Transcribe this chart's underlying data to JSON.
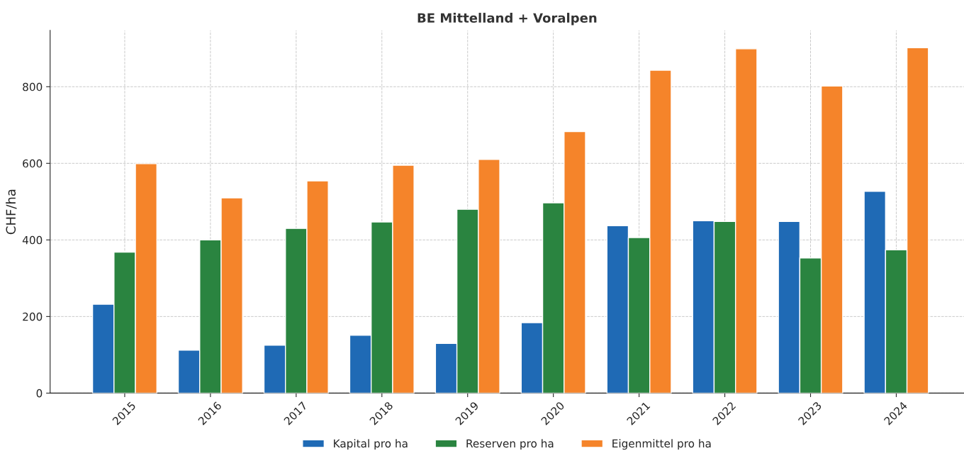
{
  "chart_data": {
    "type": "bar",
    "title": "BE Mittelland + Voralpen",
    "ylabel": "CHF/ha",
    "categories": [
      "2015",
      "2016",
      "2017",
      "2018",
      "2019",
      "2020",
      "2021",
      "2022",
      "2023",
      "2024"
    ],
    "series": [
      {
        "name": "Kapital pro ha",
        "color": "#1f6ab5",
        "values": [
          232,
          112,
          125,
          151,
          130,
          184,
          437,
          450,
          448,
          527
        ]
      },
      {
        "name": "Reserven pro ha",
        "color": "#2a8440",
        "values": [
          368,
          400,
          430,
          447,
          480,
          497,
          406,
          448,
          353,
          374
        ]
      },
      {
        "name": "Eigenmittel pro ha",
        "color": "#f5842a",
        "values": [
          599,
          510,
          554,
          595,
          610,
          683,
          843,
          899,
          802,
          902
        ]
      }
    ],
    "ylim": [
      0,
      947
    ],
    "yticks": [
      0,
      200,
      400,
      600,
      800
    ],
    "grid": true,
    "legend": "bottom"
  }
}
